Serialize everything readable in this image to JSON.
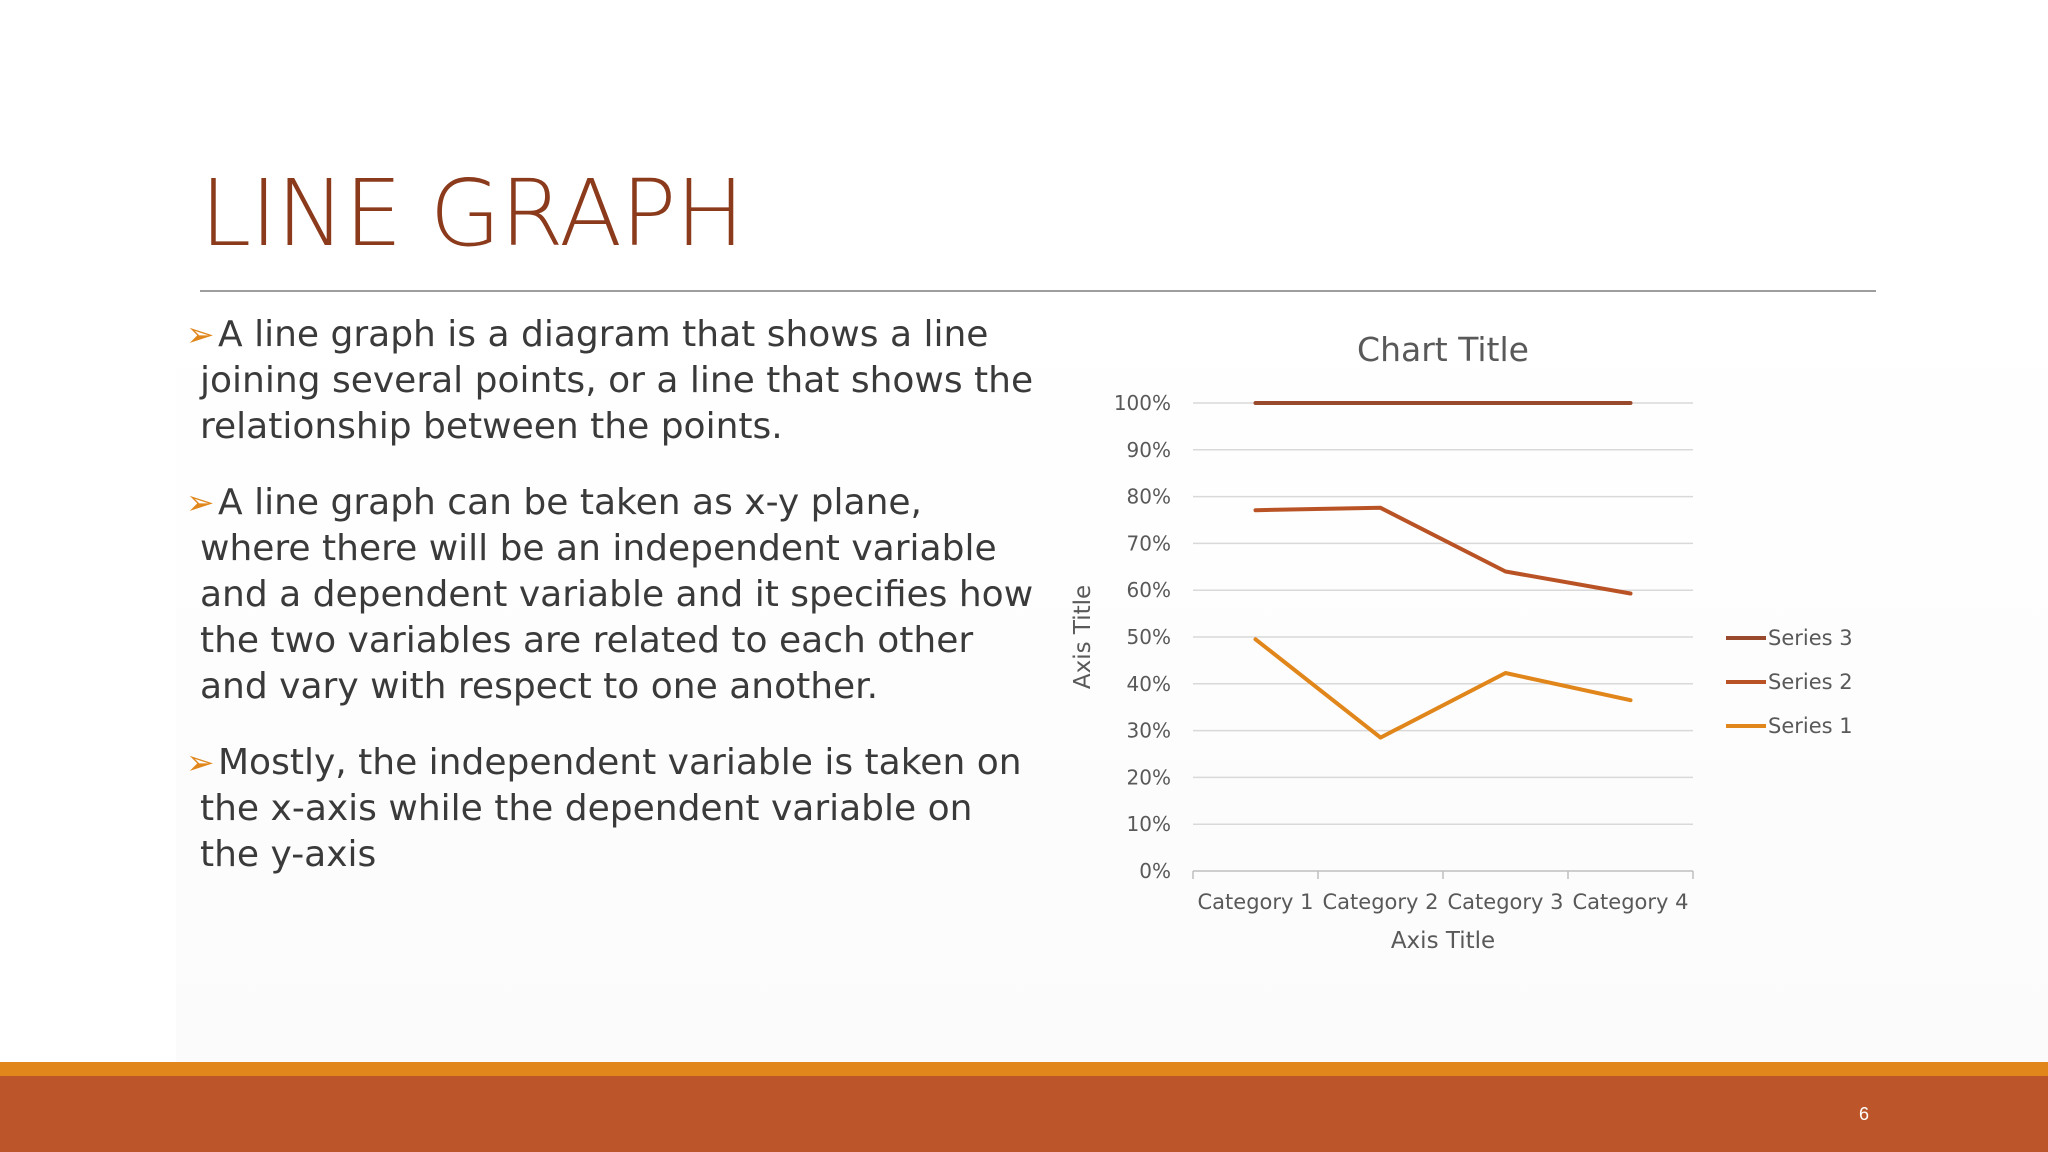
{
  "slide": {
    "title": "LINE GRAPH",
    "page_number": "6",
    "bullet_marker": "➢",
    "bullets": [
      "A line graph is a diagram that shows a line joining several points, or a line that shows the relationship between the points.",
      "A line graph can be taken as x-y plane, where there will be an independent variable and a dependent variable and it specifies how the two variables are related to each other and vary with respect to one another.",
      "Mostly, the independent variable is taken on the x-axis while the dependent variable on the y-axis"
    ]
  },
  "colors": {
    "title": "#8b3a1c",
    "accent_orange": "#e0861a",
    "footer": "#bc562a"
  },
  "chart_data": {
    "type": "line",
    "title": "Chart Title",
    "xlabel": "Axis Title",
    "ylabel": "Axis Title",
    "categories": [
      "Category 1",
      "Category 2",
      "Category 3",
      "Category 4"
    ],
    "ylim": [
      0,
      100
    ],
    "yticks": [
      "0%",
      "10%",
      "20%",
      "30%",
      "40%",
      "50%",
      "60%",
      "70%",
      "80%",
      "90%",
      "100%"
    ],
    "grid": true,
    "legend_position": "right",
    "series": [
      {
        "name": "Series 1",
        "color": "#e0861a",
        "values": [
          49.5,
          28.5,
          42.3,
          36.5
        ]
      },
      {
        "name": "Series 2",
        "color": "#b95325",
        "values": [
          77.1,
          77.6,
          64.0,
          59.3
        ]
      },
      {
        "name": "Series 3",
        "color": "#9a4a2c",
        "values": [
          100,
          100,
          100,
          100
        ]
      }
    ],
    "legend_order": [
      "Series 3",
      "Series 2",
      "Series 1"
    ]
  }
}
